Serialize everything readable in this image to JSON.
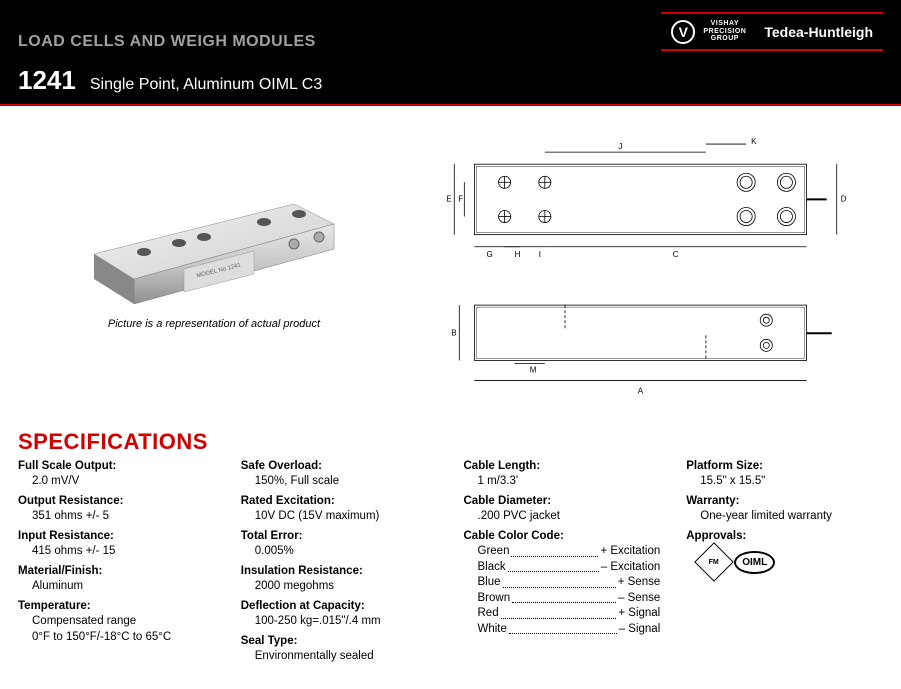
{
  "header": {
    "category": "LOAD CELLS AND WEIGH MODULES",
    "brand": "Tedea-Huntleigh",
    "logo_line1": "VISHAY",
    "logo_line2": "PRECISION",
    "logo_line3": "GROUP"
  },
  "model": {
    "number": "1241",
    "description": "Single Point, Aluminum OIML C3"
  },
  "figure": {
    "caption": "Picture is a representation of actual product",
    "dim_labels": [
      "A",
      "B",
      "C",
      "D",
      "E",
      "F",
      "G",
      "H",
      "I",
      "J",
      "K",
      "M"
    ]
  },
  "specs_heading": "SPECIFICATIONS",
  "colors": {
    "accent": "#d00000",
    "muted": "#a0a0a0"
  },
  "spec_columns": [
    [
      {
        "label": "Full Scale Output:",
        "value": "2.0 mV/V"
      },
      {
        "label": "Output Resistance:",
        "value": "351 ohms +/- 5"
      },
      {
        "label": "Input Resistance:",
        "value": "415 ohms +/- 15"
      },
      {
        "label": "Material/Finish:",
        "value": "Aluminum"
      },
      {
        "label": "Temperature:",
        "value": "Compensated range\n0°F to 150°F/-18°C to 65°C"
      }
    ],
    [
      {
        "label": "Safe Overload:",
        "value": "150%, Full scale"
      },
      {
        "label": "Rated Excitation:",
        "value": "10V DC (15V maximum)"
      },
      {
        "label": "Total Error:",
        "value": "0.005%"
      },
      {
        "label": "Insulation Resistance:",
        "value": "2000 megohms"
      },
      {
        "label": "Deflection at Capacity:",
        "value": "100-250 kg=.015\"/.4 mm"
      },
      {
        "label": "Seal Type:",
        "value": "Environmentally sealed"
      }
    ],
    [
      {
        "label": "Cable Length:",
        "value": "1 m/3.3'"
      },
      {
        "label": "Cable Diameter:",
        "value": ".200 PVC jacket"
      }
    ],
    [
      {
        "label": "Platform Size:",
        "value": "15.5\" x 15.5\""
      },
      {
        "label": "Warranty:",
        "value": "One-year limited warranty"
      },
      {
        "label": "Approvals:",
        "value": ""
      }
    ]
  ],
  "cable_color_code": {
    "label": "Cable Color Code:",
    "rows": [
      {
        "name": "Green",
        "sig": "+  Excitation"
      },
      {
        "name": "Black",
        "sig": "–  Excitation"
      },
      {
        "name": "Blue",
        "sig": "+  Sense"
      },
      {
        "name": "Brown",
        "sig": "–  Sense"
      },
      {
        "name": "Red",
        "sig": "+  Signal"
      },
      {
        "name": "White",
        "sig": "–  Signal"
      }
    ]
  },
  "approvals": {
    "fm_text": "FM",
    "oiml_text": "OIML"
  }
}
